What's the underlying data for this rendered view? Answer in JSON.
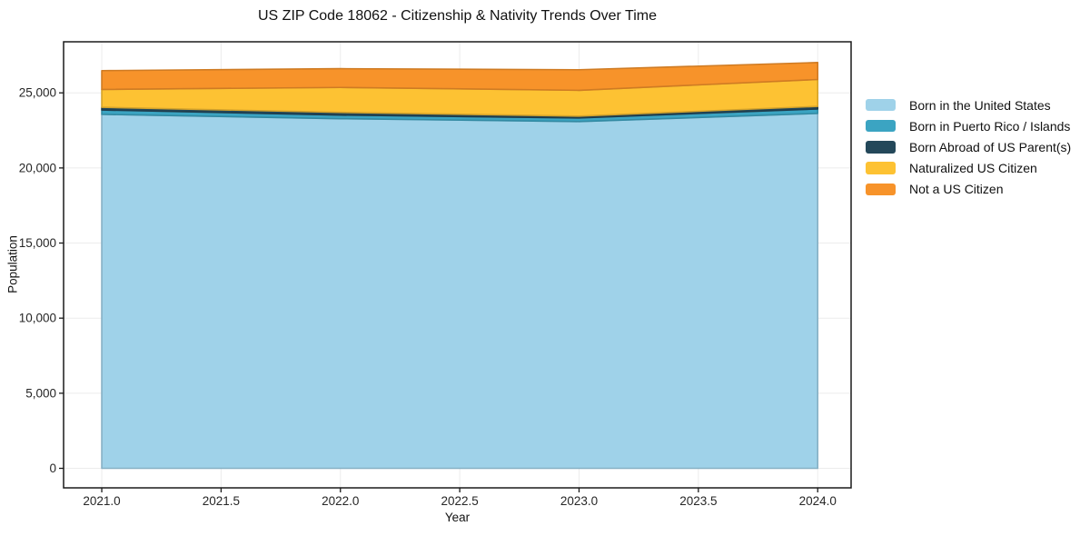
{
  "chart_data": {
    "type": "area",
    "stacked": true,
    "title": "US ZIP Code 18062 - Citizenship & Nativity Trends Over Time",
    "xlabel": "Year",
    "ylabel": "Population",
    "x": [
      2021,
      2022,
      2023,
      2024
    ],
    "series": [
      {
        "name": "Born in the United States",
        "color": "#9fd2e9",
        "values": [
          23570,
          23280,
          23090,
          23630
        ]
      },
      {
        "name": "Born in Puerto Rico / Islands",
        "color": "#3ba4c2",
        "values": [
          290,
          240,
          240,
          300
        ]
      },
      {
        "name": "Born Abroad of US Parent(s)",
        "color": "#24485a",
        "values": [
          180,
          180,
          120,
          170
        ]
      },
      {
        "name": "Naturalized US Citizen",
        "color": "#fdc233",
        "values": [
          1190,
          1660,
          1720,
          1790
        ]
      },
      {
        "name": "Not a US Citizen",
        "color": "#f7932a",
        "values": [
          1250,
          1250,
          1370,
          1130
        ]
      }
    ],
    "totals": [
      26480,
      26610,
      26540,
      27020
    ],
    "xlim": [
      2020.84,
      2024.14
    ],
    "ylim": [
      -1300,
      28400
    ],
    "xticks": {
      "values": [
        2021.0,
        2021.5,
        2022.0,
        2022.5,
        2023.0,
        2023.5,
        2024.0
      ],
      "labels": [
        "2021.0",
        "2021.5",
        "2022.0",
        "2022.5",
        "2023.0",
        "2023.5",
        "2024.0"
      ]
    },
    "yticks": {
      "values": [
        0,
        5000,
        10000,
        15000,
        20000,
        25000
      ],
      "labels": [
        "0",
        "5,000",
        "10,000",
        "15,000",
        "20,000",
        "25,000"
      ]
    },
    "grid": true,
    "grid_color": "#ececec",
    "spine_color": "#1a1a1a",
    "legend_position": "right-outside"
  }
}
